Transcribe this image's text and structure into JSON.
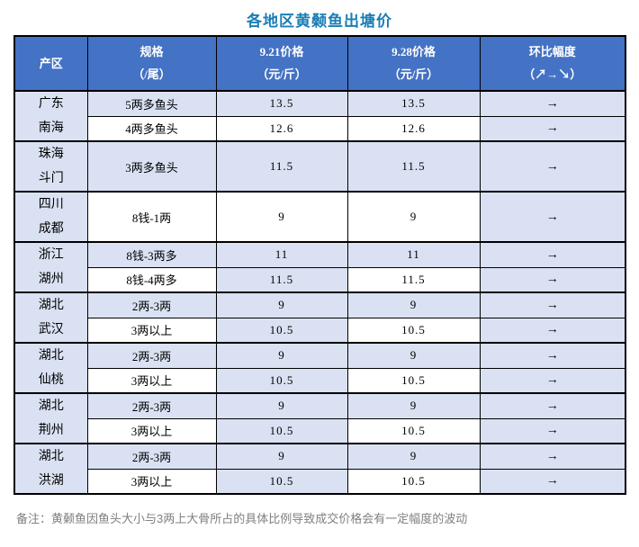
{
  "title": "各地区黄颡鱼出塘价",
  "note": "备注：黄颡鱼因鱼头大小与3两上大骨所占的具体比例导致成交价格会有一定幅度的波动",
  "colors": {
    "header_bg": "#4472c4",
    "header_text": "#ffffff",
    "row_shade": "#d9e1f2",
    "row_white": "#ffffff",
    "border": "#000000",
    "title_text": "#1b7eb5",
    "note_text": "#808080",
    "arrow": "#000000"
  },
  "table": {
    "headers": {
      "region": "产区",
      "spec_line1": "规格",
      "spec_line2": "（/尾）",
      "p921_line1": "9.21价格",
      "p921_line2": "（元/斤）",
      "p928_line1": "9.28价格",
      "p928_line2": "（元/斤）",
      "trend_line1": "环比幅度",
      "trend_line2": "（↗→↘）"
    },
    "groups": [
      {
        "region": [
          "广东",
          "南海"
        ],
        "tall": false,
        "rows": [
          {
            "spec": {
              "text": "5两多鱼头",
              "shade": true
            },
            "p921": {
              "text": "13.5",
              "shade": true
            },
            "p928": {
              "text": "13.5",
              "shade": true
            },
            "trend": {
              "text": "→",
              "shade": true
            }
          },
          {
            "spec": {
              "text": "4两多鱼头",
              "shade": false
            },
            "p921": {
              "text": "12.6",
              "shade": false
            },
            "p928": {
              "text": "12.6",
              "shade": false
            },
            "trend": {
              "text": "→",
              "shade": true
            }
          }
        ]
      },
      {
        "region": [
          "珠海",
          "斗门"
        ],
        "tall": true,
        "rows": [
          {
            "spec": {
              "text": "3两多鱼头",
              "shade": true
            },
            "p921": {
              "text": "11.5",
              "shade": true
            },
            "p928": {
              "text": "11.5",
              "shade": true
            },
            "trend": {
              "text": "→",
              "shade": true
            }
          }
        ]
      },
      {
        "region": [
          "四川",
          "成都"
        ],
        "tall": true,
        "rows": [
          {
            "spec": {
              "text": "8钱-1两",
              "shade": false
            },
            "p921": {
              "text": "9",
              "shade": false
            },
            "p928": {
              "text": "9",
              "shade": false
            },
            "trend": {
              "text": "→",
              "shade": true
            }
          }
        ]
      },
      {
        "region": [
          "浙江",
          "湖州"
        ],
        "tall": false,
        "rows": [
          {
            "spec": {
              "text": "8钱-3两多",
              "shade": true
            },
            "p921": {
              "text": "11",
              "shade": true
            },
            "p928": {
              "text": "11",
              "shade": true
            },
            "trend": {
              "text": "→",
              "shade": true
            }
          },
          {
            "spec": {
              "text": "8钱-4两多",
              "shade": false
            },
            "p921": {
              "text": "11.5",
              "shade": true
            },
            "p928": {
              "text": "11.5",
              "shade": false
            },
            "trend": {
              "text": "→",
              "shade": true
            }
          }
        ]
      },
      {
        "region": [
          "湖北",
          "武汉"
        ],
        "tall": false,
        "rows": [
          {
            "spec": {
              "text": "2两-3两",
              "shade": true
            },
            "p921": {
              "text": "9",
              "shade": true
            },
            "p928": {
              "text": "9",
              "shade": true
            },
            "trend": {
              "text": "→",
              "shade": true
            }
          },
          {
            "spec": {
              "text": "3两以上",
              "shade": false
            },
            "p921": {
              "text": "10.5",
              "shade": true
            },
            "p928": {
              "text": "10.5",
              "shade": false
            },
            "trend": {
              "text": "→",
              "shade": true
            }
          }
        ]
      },
      {
        "region": [
          "湖北",
          "仙桃"
        ],
        "tall": false,
        "rows": [
          {
            "spec": {
              "text": "2两-3两",
              "shade": true
            },
            "p921": {
              "text": "9",
              "shade": true
            },
            "p928": {
              "text": "9",
              "shade": true
            },
            "trend": {
              "text": "→",
              "shade": true
            }
          },
          {
            "spec": {
              "text": "3两以上",
              "shade": false
            },
            "p921": {
              "text": "10.5",
              "shade": true
            },
            "p928": {
              "text": "10.5",
              "shade": false
            },
            "trend": {
              "text": "→",
              "shade": true
            }
          }
        ]
      },
      {
        "region": [
          "湖北",
          "荆州"
        ],
        "tall": false,
        "rows": [
          {
            "spec": {
              "text": "2两-3两",
              "shade": true
            },
            "p921": {
              "text": "9",
              "shade": true
            },
            "p928": {
              "text": "9",
              "shade": true
            },
            "trend": {
              "text": "→",
              "shade": true
            }
          },
          {
            "spec": {
              "text": "3两以上",
              "shade": false
            },
            "p921": {
              "text": "10.5",
              "shade": true
            },
            "p928": {
              "text": "10.5",
              "shade": false
            },
            "trend": {
              "text": "→",
              "shade": true
            }
          }
        ]
      },
      {
        "region": [
          "湖北",
          "洪湖"
        ],
        "tall": false,
        "rows": [
          {
            "spec": {
              "text": "2两-3两",
              "shade": true
            },
            "p921": {
              "text": "9",
              "shade": true
            },
            "p928": {
              "text": "9",
              "shade": true
            },
            "trend": {
              "text": "→",
              "shade": true
            }
          },
          {
            "spec": {
              "text": "3两以上",
              "shade": false
            },
            "p921": {
              "text": "10.5",
              "shade": true
            },
            "p928": {
              "text": "10.5",
              "shade": false
            },
            "trend": {
              "text": "→",
              "shade": true
            }
          }
        ]
      }
    ]
  },
  "chart_data": {
    "type": "table",
    "title": "各地区黄颡鱼出塘价",
    "columns": [
      "产区",
      "规格（/尾）",
      "9.21价格（元/斤）",
      "9.28价格（元/斤）",
      "环比幅度（↗→↘）"
    ],
    "rows": [
      [
        "广东南海",
        "5两多鱼头",
        13.5,
        13.5,
        "→"
      ],
      [
        "广东南海",
        "4两多鱼头",
        12.6,
        12.6,
        "→"
      ],
      [
        "珠海斗门",
        "3两多鱼头",
        11.5,
        11.5,
        "→"
      ],
      [
        "四川成都",
        "8钱-1两",
        9,
        9,
        "→"
      ],
      [
        "浙江湖州",
        "8钱-3两多",
        11,
        11,
        "→"
      ],
      [
        "浙江湖州",
        "8钱-4两多",
        11.5,
        11.5,
        "→"
      ],
      [
        "湖北武汉",
        "2两-3两",
        9,
        9,
        "→"
      ],
      [
        "湖北武汉",
        "3两以上",
        10.5,
        10.5,
        "→"
      ],
      [
        "湖北仙桃",
        "2两-3两",
        9,
        9,
        "→"
      ],
      [
        "湖北仙桃",
        "3两以上",
        10.5,
        10.5,
        "→"
      ],
      [
        "湖北荆州",
        "2两-3两",
        9,
        9,
        "→"
      ],
      [
        "湖北荆州",
        "3两以上",
        10.5,
        10.5,
        "→"
      ],
      [
        "湖北洪湖",
        "2两-3两",
        9,
        9,
        "→"
      ],
      [
        "湖北洪湖",
        "3两以上",
        10.5,
        10.5,
        "→"
      ]
    ],
    "note": "备注：黄颡鱼因鱼头大小与3两上大骨所占的具体比例导致成交价格会有一定幅度的波动",
    "layout": {
      "header_bg": "#4472c4",
      "shaded_cell_bg": "#d9e1f2",
      "trend_all_values": "flat"
    }
  }
}
